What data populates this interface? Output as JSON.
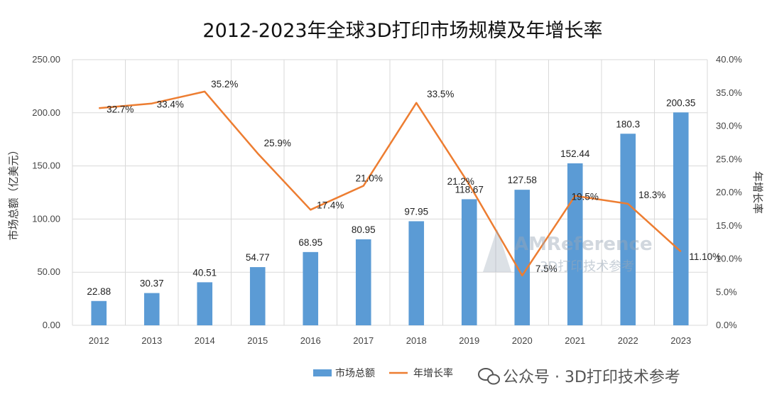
{
  "chart_data": {
    "type": "bar+line",
    "title": "2012-2023年全球3D打印市场规模及年增长率",
    "categories": [
      "2012",
      "2013",
      "2014",
      "2015",
      "2016",
      "2017",
      "2018",
      "2019",
      "2020",
      "2021",
      "2022",
      "2023"
    ],
    "ylabel_left": "市场总额（亿美元）",
    "ylabel_right": "年增长率",
    "ylim_left": [
      0,
      250
    ],
    "ylim_right": [
      0,
      40
    ],
    "yticks_left": [
      "0.00",
      "50.00",
      "100.00",
      "150.00",
      "200.00",
      "250.00"
    ],
    "yticks_right": [
      "0.0%",
      "5.0%",
      "10.0%",
      "15.0%",
      "20.0%",
      "25.0%",
      "30.0%",
      "35.0%",
      "40.0%"
    ],
    "grid": true,
    "legend_position": "bottom",
    "series": [
      {
        "name": "市场总额",
        "kind": "bar",
        "axis": "left",
        "color": "#5b9bd5",
        "values": [
          22.88,
          30.37,
          40.51,
          54.77,
          68.95,
          80.95,
          97.95,
          118.67,
          127.58,
          152.44,
          180.3,
          200.35
        ],
        "labels": [
          "22.88",
          "30.37",
          "40.51",
          "54.77",
          "68.95",
          "80.95",
          "97.95",
          "118.67",
          "127.58",
          "152.44",
          "180.3",
          "200.35"
        ]
      },
      {
        "name": "年增长率",
        "kind": "line",
        "axis": "right",
        "color": "#ed7d31",
        "values": [
          32.7,
          33.4,
          35.2,
          25.9,
          17.4,
          21.0,
          33.5,
          21.2,
          7.5,
          19.5,
          18.3,
          11.1
        ],
        "labels": [
          "32.7%",
          "33.4%",
          "35.2%",
          "25.9%",
          "17.4%",
          "21.0%",
          "33.5%",
          "21.2%",
          "7.5%",
          "19.5%",
          "18.3%",
          "11.10%"
        ]
      }
    ]
  },
  "watermark": {
    "source": "公众号 · 3D打印技术参考",
    "brand": "AMReference",
    "brand_sub": "3D打印技术参考"
  }
}
